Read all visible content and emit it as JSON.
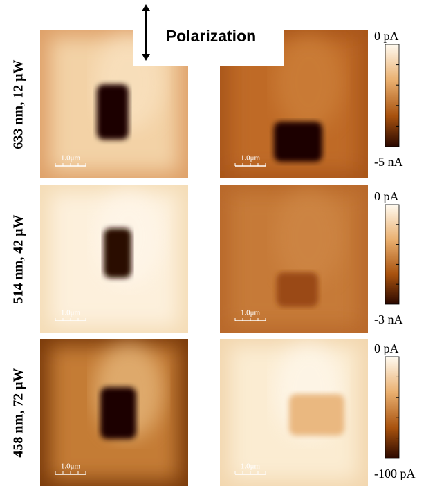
{
  "polarization_label": "Polarization",
  "rows": [
    {
      "label": "633 nm, 12 μW",
      "scale_bars": [
        "1.0μm",
        "1.0μm"
      ],
      "colorbar": {
        "top": "0 pA",
        "bottom": "-5 nA"
      }
    },
    {
      "label": "514 nm, 42 μW",
      "scale_bars": [
        "1.0μm",
        "1.0μm"
      ],
      "colorbar": {
        "top": "0 pA",
        "bottom": "-3 nA"
      }
    },
    {
      "label": "458 nm, 72 μW",
      "scale_bars": [
        "1.0μm",
        "1.0μm"
      ],
      "colorbar": {
        "top": "0 pA",
        "bottom": "-100 pA"
      }
    }
  ]
}
